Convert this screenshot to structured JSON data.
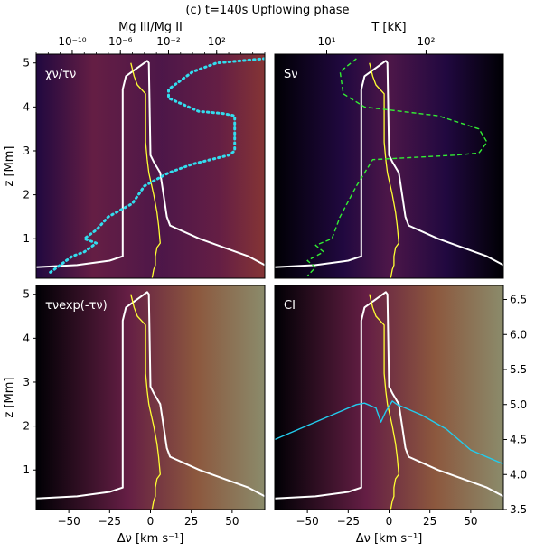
{
  "figure": {
    "title": "(c) t=140s Upflowing phase"
  },
  "colors": {
    "bg_dark": "#000004",
    "magma_mid": "#8c2981",
    "magma_hot": "#fe9f6d",
    "magma_bright": "#fcfdbf",
    "temperature_line": "#ffffff",
    "velocity_line": "#ffff33",
    "ratio_line": "#33ddee",
    "source_line": "#33ee33",
    "contrib_line": "#22ccee"
  },
  "chart_data": [
    {
      "type": "heatmap",
      "panel": "top-left",
      "panel_label": "χν/τν",
      "xlim": [
        -70,
        70
      ],
      "ylim": [
        0.1,
        5.2
      ],
      "ylabel": "z [Mm]",
      "yticks": [
        1,
        2,
        3,
        4,
        5
      ],
      "top_axis": {
        "label": "Mg III/Mg II",
        "scale": "log",
        "range": [
          1e-13,
          1000000.0
        ],
        "ticks": [
          "10⁻¹⁰",
          "10⁻⁶",
          "10⁻²",
          "10²"
        ]
      },
      "series": [
        {
          "name": "",
          "style": "solid-white",
          "x": [
            -70,
            -45,
            -25,
            -17,
            -17,
            -15,
            -2,
            -1,
            0,
            2,
            6,
            8,
            10,
            12,
            30,
            60,
            70
          ],
          "y": [
            0.35,
            0.4,
            0.5,
            0.6,
            4.4,
            4.7,
            5.05,
            5.0,
            2.9,
            2.75,
            2.5,
            2.0,
            1.5,
            1.3,
            1.0,
            0.6,
            0.4
          ]
        },
        {
          "name": "",
          "style": "solid-yellow",
          "x": [
            -12,
            -10,
            -8,
            -3,
            -3,
            -3,
            -2,
            -1,
            2,
            4,
            5,
            6,
            4,
            3,
            3,
            2,
            1
          ],
          "y": [
            5.0,
            4.7,
            4.5,
            4.3,
            3.8,
            3.2,
            2.8,
            2.5,
            2.0,
            1.6,
            1.3,
            0.9,
            0.8,
            0.6,
            0.4,
            0.3,
            0.1
          ]
        },
        {
          "name": "Mg III/Mg II",
          "style": "dotted-cyan",
          "x_log10": [
            6,
            2,
            0,
            -2,
            -2,
            0.5,
            2.5,
            3.5,
            3.5,
            3,
            0,
            -2,
            -4,
            -5,
            -7,
            -8,
            -9,
            -8,
            -9,
            -10,
            -11,
            -12
          ],
          "y": [
            5.1,
            5.0,
            4.8,
            4.4,
            4.2,
            3.9,
            3.85,
            3.8,
            3.0,
            2.9,
            2.7,
            2.5,
            2.2,
            1.8,
            1.5,
            1.2,
            1.0,
            0.9,
            0.7,
            0.6,
            0.4,
            0.2
          ]
        }
      ]
    },
    {
      "type": "heatmap",
      "panel": "top-right",
      "panel_label": "Sν",
      "xlim": [
        -70,
        70
      ],
      "ylim": [
        0.1,
        5.2
      ],
      "top_axis": {
        "label": "T [kK]",
        "scale": "log",
        "range": [
          3,
          600
        ],
        "ticks": [
          "10¹",
          "10²"
        ]
      },
      "series": [
        {
          "name": "",
          "style": "solid-white",
          "x": [
            -70,
            -45,
            -25,
            -17,
            -17,
            -15,
            -2,
            -1,
            0,
            2,
            6,
            8,
            10,
            12,
            30,
            60,
            70
          ],
          "y": [
            0.35,
            0.4,
            0.5,
            0.6,
            4.4,
            4.7,
            5.05,
            5.0,
            2.9,
            2.75,
            2.5,
            2.0,
            1.5,
            1.3,
            1.0,
            0.6,
            0.4
          ]
        },
        {
          "name": "",
          "style": "solid-yellow",
          "x": [
            -12,
            -10,
            -8,
            -3,
            -3,
            -3,
            -2,
            -1,
            2,
            4,
            5,
            6,
            4,
            3,
            3,
            2,
            1
          ],
          "y": [
            5.0,
            4.7,
            4.5,
            4.3,
            3.8,
            3.2,
            2.8,
            2.5,
            2.0,
            1.6,
            1.3,
            0.9,
            0.8,
            0.6,
            0.4,
            0.3,
            0.1
          ]
        },
        {
          "name": "",
          "style": "dashed-green",
          "x": [
            -20,
            -30,
            -28,
            -15,
            30,
            55,
            60,
            55,
            40,
            -10,
            -20,
            -30,
            -35,
            -45,
            -40,
            -50,
            -45,
            -50
          ],
          "y": [
            5.1,
            4.8,
            4.3,
            4.0,
            3.8,
            3.5,
            3.2,
            2.95,
            2.9,
            2.8,
            2.2,
            1.5,
            1.0,
            0.85,
            0.7,
            0.5,
            0.35,
            0.15
          ]
        }
      ]
    },
    {
      "type": "heatmap",
      "panel": "bottom-left",
      "panel_label": "τνexp(-τν)",
      "xlim": [
        -70,
        70
      ],
      "ylim": [
        0.1,
        5.2
      ],
      "xlabel": "Δν [km s⁻¹]",
      "ylabel": "z [Mm]",
      "xticks": [
        -50,
        -25,
        0,
        25,
        50
      ],
      "yticks": [
        1,
        2,
        3,
        4,
        5
      ],
      "series": [
        {
          "name": "",
          "style": "solid-white",
          "x": [
            -70,
            -45,
            -25,
            -17,
            -17,
            -15,
            -2,
            -1,
            0,
            2,
            6,
            8,
            10,
            12,
            30,
            60,
            70
          ],
          "y": [
            0.35,
            0.4,
            0.5,
            0.6,
            4.4,
            4.7,
            5.05,
            5.0,
            2.9,
            2.75,
            2.5,
            2.0,
            1.5,
            1.3,
            1.0,
            0.6,
            0.4
          ]
        },
        {
          "name": "",
          "style": "solid-yellow",
          "x": [
            -12,
            -10,
            -8,
            -3,
            -3,
            -3,
            -2,
            -1,
            2,
            4,
            5,
            6,
            4,
            3,
            3,
            2,
            1
          ],
          "y": [
            5.0,
            4.7,
            4.5,
            4.3,
            3.8,
            3.2,
            2.8,
            2.5,
            2.0,
            1.6,
            1.3,
            0.9,
            0.8,
            0.6,
            0.4,
            0.3,
            0.1
          ]
        }
      ]
    },
    {
      "type": "heatmap",
      "panel": "bottom-right",
      "panel_label": "CI",
      "xlim": [
        -70,
        70
      ],
      "ylim": [
        0.1,
        5.2
      ],
      "xlabel": "Δν [km s⁻¹]",
      "xticks": [
        -50,
        -25,
        0,
        25,
        50
      ],
      "right_axis": {
        "range": [
          3.5,
          6.7
        ],
        "ticks": [
          "3.5",
          "4.0",
          "4.5",
          "5.0",
          "5.5",
          "6.0",
          "6.5"
        ]
      },
      "series": [
        {
          "name": "",
          "style": "solid-white",
          "x": [
            -70,
            -45,
            -25,
            -17,
            -17,
            -15,
            -2,
            -1,
            0,
            2,
            6,
            8,
            10,
            12,
            30,
            60,
            70
          ],
          "y": [
            0.35,
            0.4,
            0.5,
            0.6,
            4.4,
            4.7,
            5.05,
            5.0,
            2.9,
            2.75,
            2.5,
            2.0,
            1.5,
            1.3,
            1.0,
            0.6,
            0.4
          ]
        },
        {
          "name": "",
          "style": "solid-yellow",
          "x": [
            -12,
            -10,
            -8,
            -3,
            -3,
            -3,
            -2,
            -1,
            2,
            4,
            5,
            6,
            4,
            3,
            3,
            2,
            1
          ],
          "y": [
            5.0,
            4.7,
            4.5,
            4.3,
            3.8,
            3.2,
            2.8,
            2.5,
            2.0,
            1.6,
            1.3,
            0.9,
            0.8,
            0.6,
            0.4,
            0.3,
            0.1
          ]
        },
        {
          "name": "",
          "style": "solid-cyan",
          "axis": "right",
          "x": [
            -70,
            -50,
            -35,
            -20,
            -15,
            -8,
            -5,
            -2,
            2,
            5,
            10,
            20,
            35,
            50,
            55,
            70
          ],
          "y": [
            4.5,
            4.7,
            4.85,
            5.0,
            5.02,
            4.95,
            4.75,
            4.9,
            5.05,
            5.0,
            4.95,
            4.85,
            4.65,
            4.35,
            4.3,
            4.15
          ]
        }
      ]
    }
  ]
}
